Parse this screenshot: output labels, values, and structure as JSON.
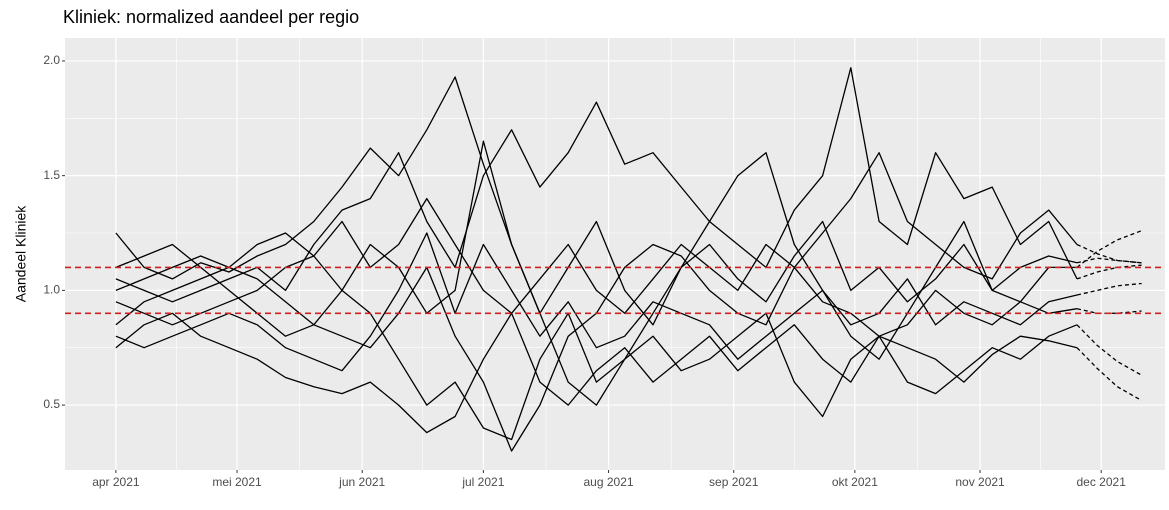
{
  "chart_data": {
    "type": "line",
    "title": "Kliniek: normalized aandeel per regio",
    "y_label": "Aandeel Kliniek",
    "x": [
      0,
      7,
      14,
      21,
      28,
      35,
      42,
      49,
      56,
      63,
      70,
      77,
      84,
      91,
      98,
      105,
      112,
      119,
      126,
      133,
      140,
      147,
      154,
      161,
      168,
      175,
      182,
      189,
      196,
      203,
      210,
      217,
      224,
      231,
      238
    ],
    "xlim": [
      -12.6,
      259.8
    ],
    "xticks": [
      {
        "value": 0,
        "label": "apr 2021"
      },
      {
        "value": 30,
        "label": "mei 2021"
      },
      {
        "value": 61,
        "label": "jun 2021"
      },
      {
        "value": 91,
        "label": "jul 2021"
      },
      {
        "value": 122,
        "label": "aug 2021"
      },
      {
        "value": 153,
        "label": "sep 2021"
      },
      {
        "value": 183,
        "label": "okt 2021"
      },
      {
        "value": 214,
        "label": "nov 2021"
      },
      {
        "value": 244,
        "label": "dec 2021"
      }
    ],
    "ylim": [
      0.217,
      2.1
    ],
    "yticks": [
      0.5,
      {
        "value": 1,
        "label": "1.0"
      },
      1.5,
      {
        "value": 2,
        "label": "2.0"
      }
    ],
    "grid": true,
    "background": "#ebebeb",
    "line_color": "#000000",
    "series": [
      {
        "values": [
          1.25,
          1.1,
          1.05,
          1.12,
          1.08,
          1.15,
          1.2,
          1.3,
          1.45,
          1.62,
          1.5,
          1.7,
          1.93,
          1.55,
          1.2,
          0.9,
          1.1,
          1.3,
          1.0,
          0.85,
          1.1,
          1.2,
          1.05,
          0.95,
          1.15,
          1.3,
          1.0,
          1.1,
          0.95,
          1.05,
          1.2,
          1.0,
          1.1,
          1.15,
          1.12
        ]
      },
      {
        "values": [
          0.75,
          0.85,
          0.9,
          0.8,
          0.75,
          0.7,
          0.62,
          0.58,
          0.55,
          0.6,
          0.5,
          0.38,
          0.45,
          0.7,
          0.9,
          0.6,
          0.5,
          0.65,
          0.75,
          0.6,
          0.7,
          0.8,
          0.65,
          0.75,
          0.85,
          0.7,
          0.6,
          0.8,
          0.75,
          0.7,
          0.6,
          0.72,
          0.8,
          0.78,
          0.75
        ]
      },
      {
        "values": [
          1.05,
          1.0,
          0.95,
          1.0,
          1.05,
          1.1,
          1.0,
          1.2,
          1.35,
          1.4,
          1.6,
          1.3,
          1.1,
          1.5,
          1.7,
          1.45,
          1.6,
          1.82,
          1.55,
          1.6,
          1.45,
          1.3,
          1.2,
          1.1,
          1.35,
          1.5,
          1.97,
          1.3,
          1.2,
          1.6,
          1.4,
          1.45,
          1.2,
          1.3,
          1.05
        ]
      },
      {
        "values": [
          0.85,
          0.95,
          1.0,
          1.05,
          1.1,
          1.05,
          0.95,
          0.85,
          0.8,
          0.75,
          0.9,
          1.1,
          0.8,
          0.6,
          0.3,
          0.5,
          0.8,
          0.9,
          1.1,
          1.2,
          1.15,
          1.0,
          0.9,
          0.85,
          1.1,
          0.95,
          0.9,
          0.8,
          0.85,
          1.0,
          0.9,
          0.85,
          0.95,
          0.9,
          0.92
        ]
      },
      {
        "values": [
          1.1,
          1.15,
          1.2,
          1.1,
          1.0,
          0.9,
          0.8,
          0.85,
          1.0,
          1.2,
          1.1,
          0.9,
          1.0,
          1.65,
          1.2,
          0.9,
          0.6,
          0.5,
          0.7,
          0.9,
          1.1,
          1.3,
          1.5,
          1.6,
          1.2,
          1.0,
          0.8,
          0.7,
          0.9,
          1.1,
          1.3,
          1.0,
          0.95,
          1.1,
          1.1
        ]
      },
      {
        "values": [
          0.95,
          0.9,
          0.85,
          0.9,
          0.95,
          1.0,
          1.1,
          1.15,
          1.0,
          0.9,
          0.7,
          0.5,
          0.6,
          0.4,
          0.35,
          0.7,
          0.9,
          0.6,
          0.7,
          0.8,
          0.65,
          0.7,
          0.8,
          0.9,
          0.6,
          0.45,
          0.7,
          0.8,
          0.6,
          0.55,
          0.65,
          0.75,
          0.7,
          0.8,
          0.85
        ]
      },
      {
        "values": [
          1.0,
          1.05,
          1.1,
          1.15,
          1.1,
          1.2,
          1.25,
          1.15,
          1.3,
          1.1,
          1.2,
          1.4,
          1.2,
          1.0,
          0.9,
          1.05,
          1.2,
          1.0,
          0.9,
          1.05,
          1.2,
          1.1,
          1.0,
          1.2,
          1.1,
          1.25,
          1.4,
          1.6,
          1.3,
          1.2,
          1.1,
          1.05,
          1.25,
          1.35,
          1.2
        ]
      },
      {
        "values": [
          0.8,
          0.75,
          0.8,
          0.85,
          0.9,
          0.85,
          0.75,
          0.7,
          0.65,
          0.8,
          1.0,
          1.25,
          0.9,
          1.2,
          1.0,
          0.8,
          0.95,
          0.75,
          0.8,
          0.95,
          0.9,
          0.85,
          0.7,
          0.8,
          0.9,
          1.0,
          0.85,
          0.9,
          1.05,
          0.85,
          0.95,
          0.9,
          0.85,
          0.95,
          0.98
        ]
      }
    ],
    "projections": {
      "style": "dashed",
      "x": [
        238,
        243,
        248,
        254
      ],
      "series": [
        {
          "values": [
            1.12,
            1.14,
            1.13,
            1.12
          ]
        },
        {
          "values": [
            0.75,
            0.66,
            0.58,
            0.52
          ]
        },
        {
          "values": [
            1.05,
            1.08,
            1.1,
            1.11
          ]
        },
        {
          "values": [
            0.92,
            0.9,
            0.9,
            0.91
          ]
        },
        {
          "values": [
            1.1,
            1.17,
            1.22,
            1.26
          ]
        },
        {
          "values": [
            0.85,
            0.76,
            0.69,
            0.63
          ]
        },
        {
          "values": [
            1.2,
            1.16,
            1.13,
            1.12
          ]
        },
        {
          "values": [
            0.98,
            1.0,
            1.02,
            1.03
          ]
        }
      ]
    },
    "reference_lines": {
      "values": [
        0.9,
        1.1
      ],
      "color": "#cc2222",
      "style": "dashed"
    }
  }
}
